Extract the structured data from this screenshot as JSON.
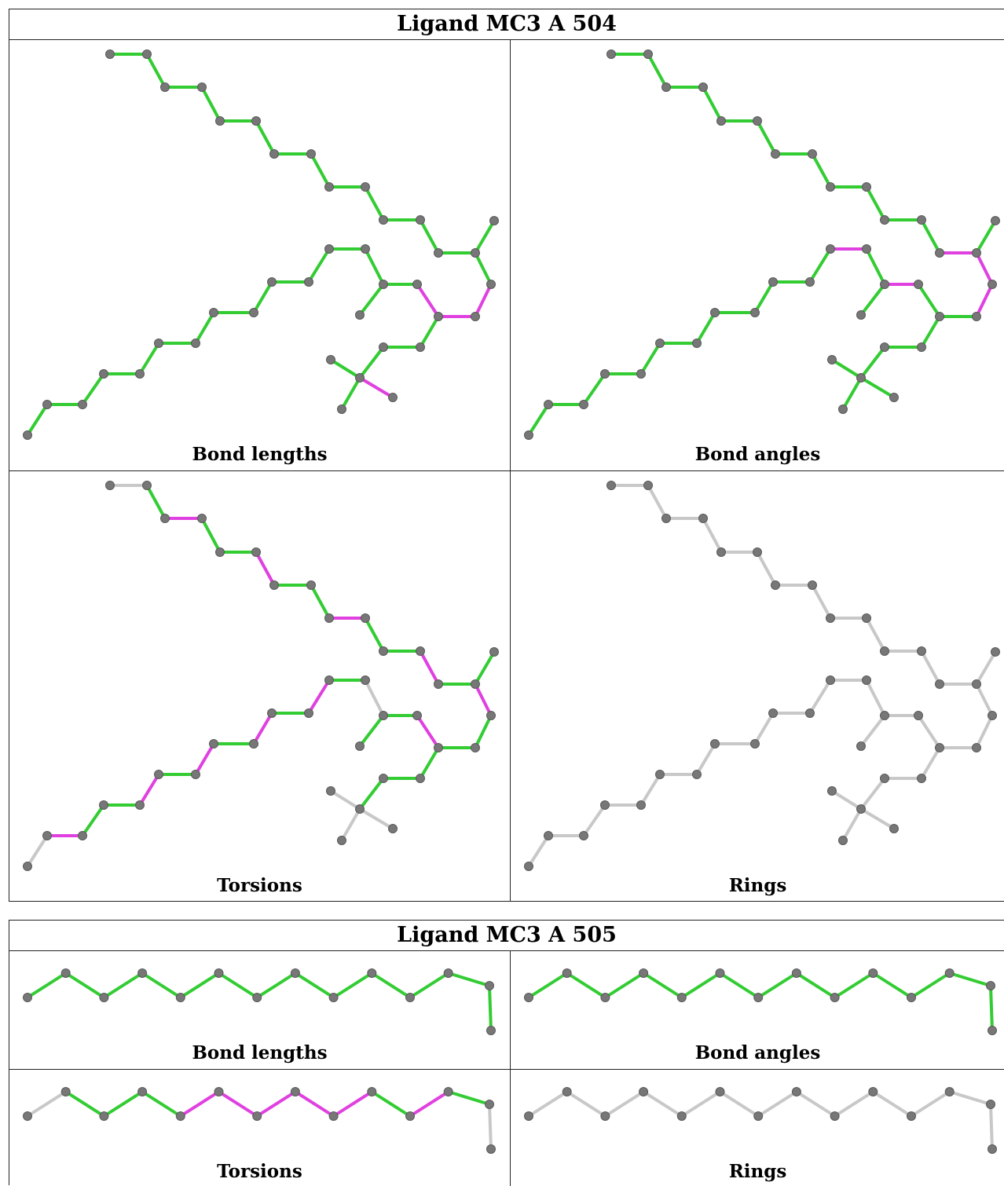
{
  "ligands": [
    {
      "title": "Ligand MC3 A 504",
      "panels": [
        {
          "caption": "Bond lengths"
        },
        {
          "caption": "Bond angles"
        },
        {
          "caption": "Torsions"
        },
        {
          "caption": "Rings"
        }
      ]
    },
    {
      "title": "Ligand MC3 A 505",
      "panels": [
        {
          "caption": "Bond lengths"
        },
        {
          "caption": "Bond angles"
        },
        {
          "caption": "Torsions"
        },
        {
          "caption": "Rings"
        }
      ]
    }
  ],
  "colors": {
    "ok_bond": "#33cc33",
    "outlier_bond": "#e040e0",
    "unassessed_bond": "#c8c8c8",
    "atom": "#777777",
    "border": "#222222"
  }
}
